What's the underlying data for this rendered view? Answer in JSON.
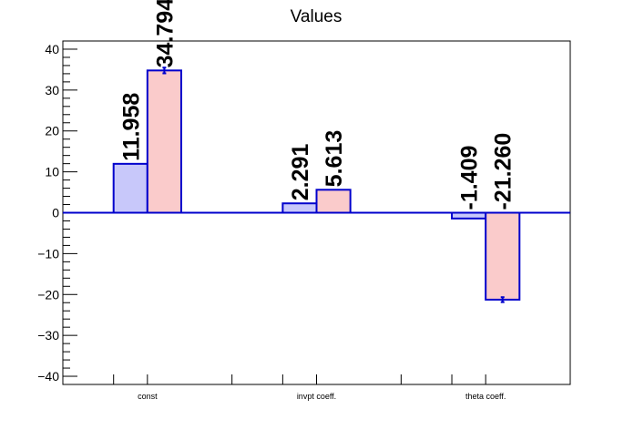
{
  "chart_data": {
    "type": "bar",
    "title": "Values",
    "categories": [
      "const",
      "invpt coeff.",
      "theta coeff."
    ],
    "series": [
      {
        "values": [
          11.958,
          2.291,
          -1.409
        ],
        "labels": [
          "11.958",
          "2.291",
          "-1.409"
        ],
        "errors": [
          0,
          0,
          0
        ]
      },
      {
        "values": [
          34.794,
          5.613,
          -21.26
        ],
        "labels": [
          "34.794",
          "5.613",
          "-21.260"
        ],
        "errors": [
          0.7,
          0,
          0.6
        ]
      }
    ],
    "ylim": [
      -42,
      42
    ],
    "yticks": [
      -40,
      -30,
      -20,
      -10,
      0,
      10,
      20,
      30,
      40
    ],
    "ytick_labels": [
      "−40",
      "−30",
      "−20",
      "−10",
      "0",
      "10",
      "20",
      "30",
      "40"
    ],
    "xlabel": "",
    "ylabel": "",
    "grid": false,
    "colors": {
      "series_fill": [
        "#c8c8fa",
        "#facbcb"
      ],
      "bar_stroke": "#0000cc",
      "zero_line": "#0000cc",
      "axis": "#000000"
    }
  }
}
